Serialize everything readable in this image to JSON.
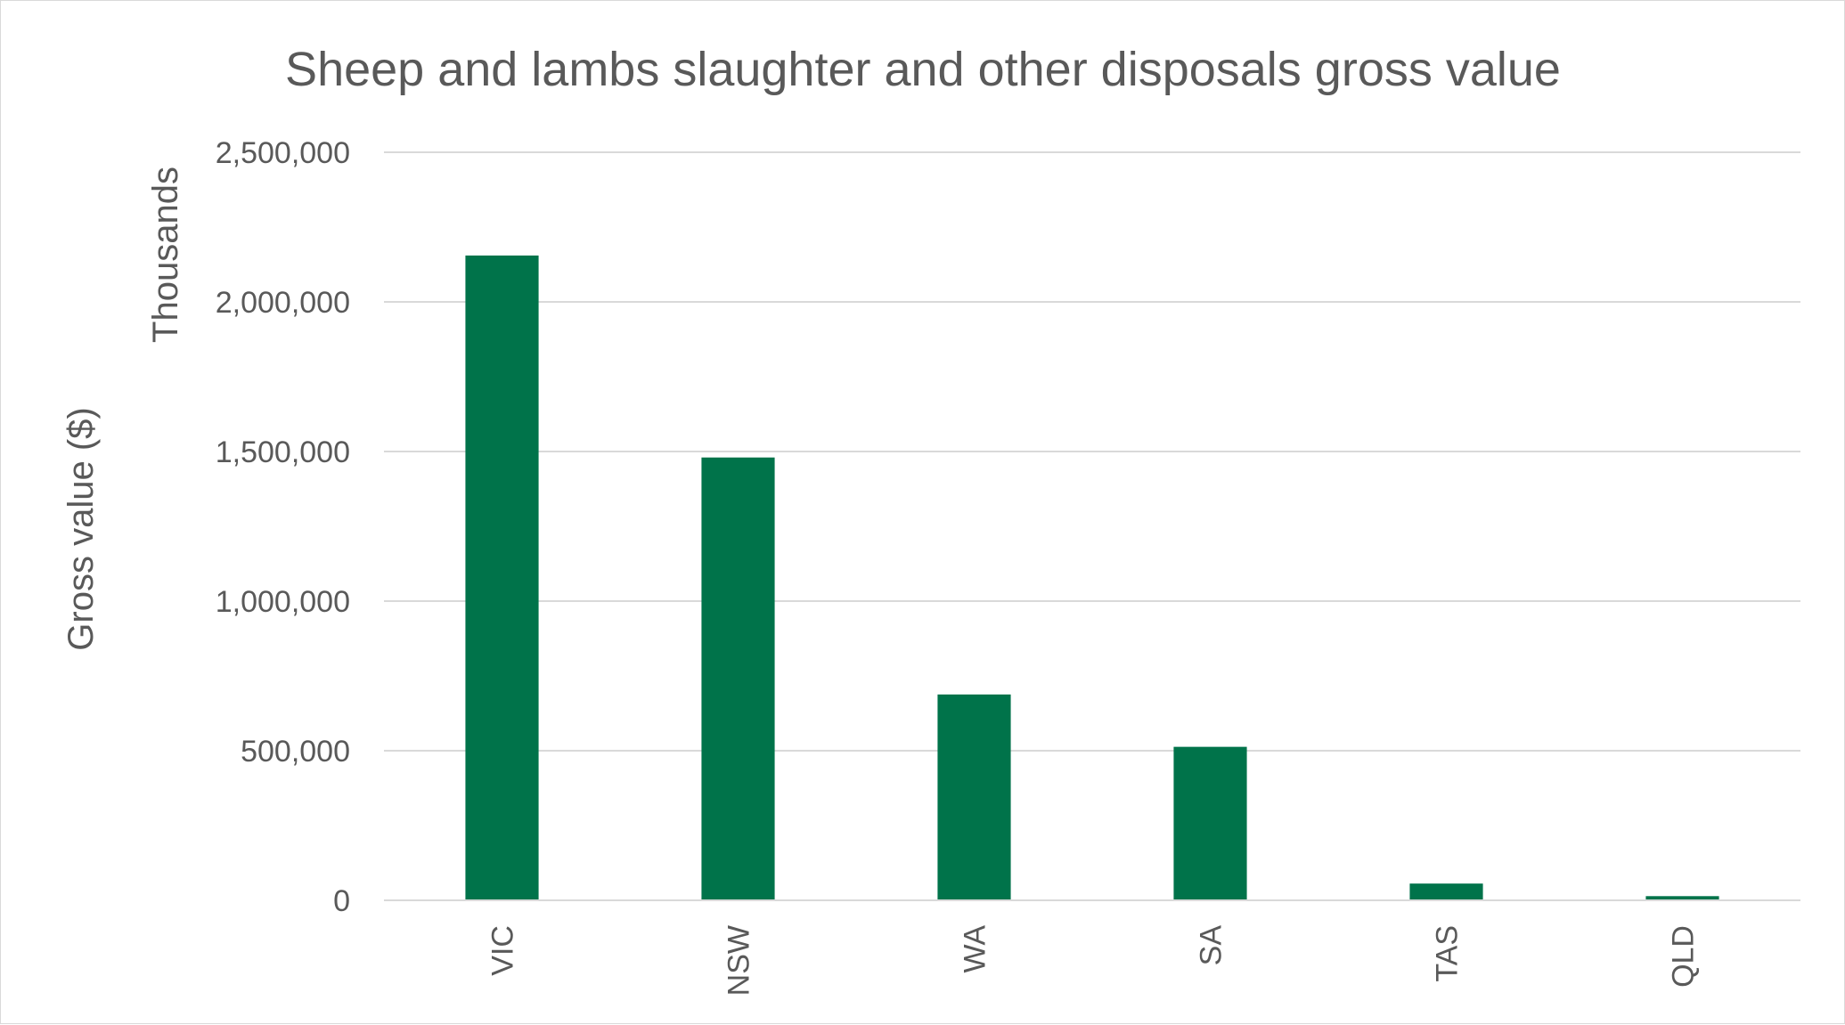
{
  "chart_data": {
    "type": "bar",
    "title": "Sheep and lambs slaughter and other disposals gross value",
    "xlabel": "",
    "ylabel": "Gross value ($)",
    "y_unit_label": "Thousands",
    "categories": [
      "VIC",
      "NSW",
      "WA",
      "SA",
      "TAS",
      "QLD"
    ],
    "values": [
      2155000,
      1480000,
      688000,
      513000,
      56000,
      14000
    ],
    "ylim": [
      0,
      2500000
    ],
    "yticks": [
      0,
      500000,
      1000000,
      1500000,
      2000000,
      2500000
    ],
    "ytick_labels": [
      "0",
      "500,000",
      "1,000,000",
      "1,500,000",
      "2,000,000",
      "2,500,000"
    ],
    "grid": true,
    "legend": "none",
    "colors": {
      "bar": "#00734a",
      "grid": "#d9d9d9",
      "text": "#595959"
    }
  }
}
